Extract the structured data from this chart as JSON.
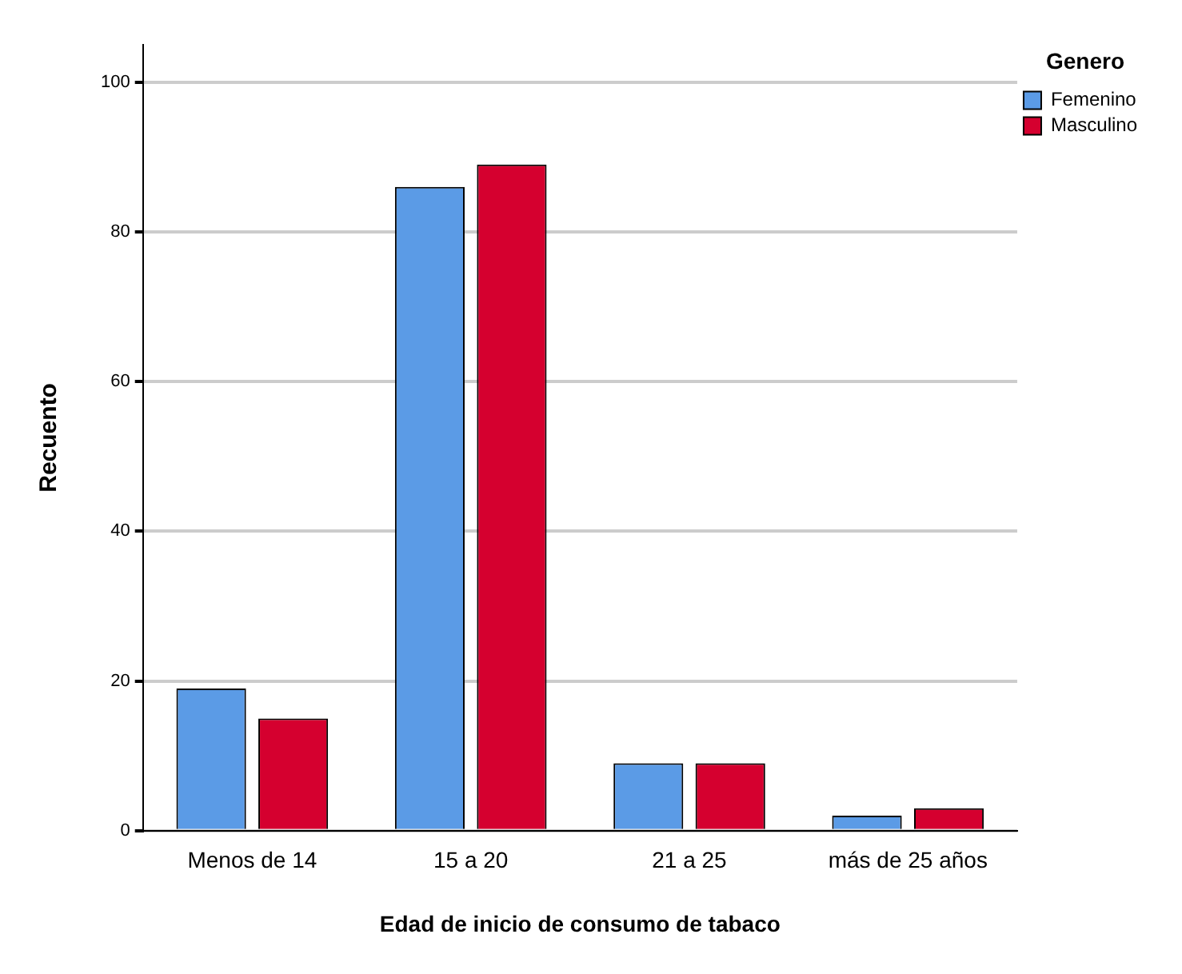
{
  "chart_data": {
    "type": "bar",
    "xlabel": "Edad de inicio de consumo de tabaco",
    "ylabel": "Recuento",
    "legend_title": "Genero",
    "categories": [
      "Menos de 14",
      "15 a 20",
      "21 a 25",
      "más de 25 años"
    ],
    "series": [
      {
        "name": "Femenino",
        "color": "#5b9be6",
        "values": [
          19,
          86,
          9,
          2
        ]
      },
      {
        "name": "Masculino",
        "color": "#d5002f",
        "values": [
          15,
          89,
          9,
          3
        ]
      }
    ],
    "ylim": [
      0,
      105
    ],
    "yticks": [
      0,
      20,
      40,
      60,
      80,
      100
    ],
    "grid": "y",
    "legend": "top right"
  }
}
